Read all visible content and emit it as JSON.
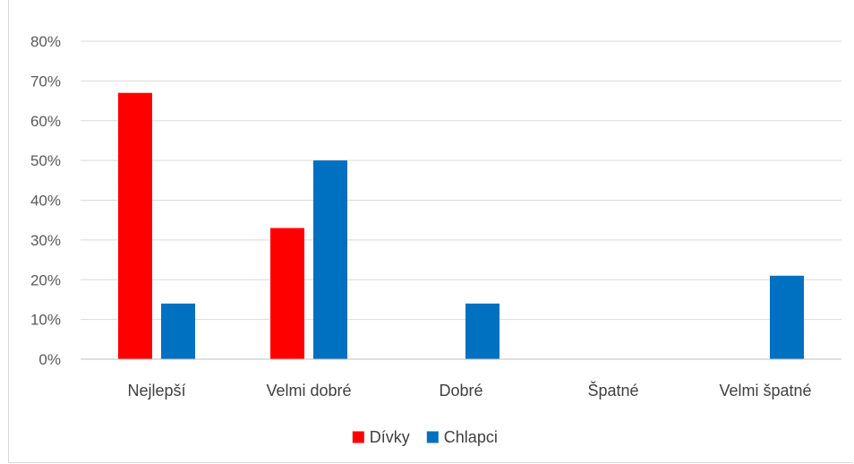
{
  "chart_data": {
    "type": "bar",
    "categories": [
      "Nejlepší",
      "Velmi dobré",
      "Dobré",
      "Špatné",
      "Velmi špatné"
    ],
    "series": [
      {
        "name": "Dívky",
        "color": "#ff0000",
        "values": [
          67,
          33,
          0,
          0,
          0
        ]
      },
      {
        "name": "Chlapci",
        "color": "#0070c0",
        "values": [
          14,
          50,
          14,
          0,
          21
        ]
      }
    ],
    "ylim": [
      0,
      80
    ],
    "yticks": [
      "0%",
      "10%",
      "20%",
      "30%",
      "40%",
      "50%",
      "60%",
      "70%",
      "80%"
    ],
    "grid": true,
    "legend": "bottom"
  }
}
